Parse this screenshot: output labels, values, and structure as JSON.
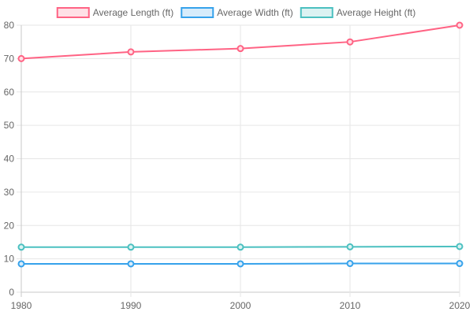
{
  "chart_data": {
    "type": "line",
    "categories": [
      "1980",
      "1990",
      "2000",
      "2010",
      "2020"
    ],
    "series": [
      {
        "name": "Average Length (ft)",
        "values": [
          70,
          72,
          73,
          75,
          80
        ],
        "color": "#ff6384",
        "fill": "#ffe0e6"
      },
      {
        "name": "Average Width (ft)",
        "values": [
          8.5,
          8.5,
          8.5,
          8.6,
          8.6
        ],
        "color": "#36a2eb",
        "fill": "#d7ecfb"
      },
      {
        "name": "Average Height (ft)",
        "values": [
          13.5,
          13.5,
          13.5,
          13.6,
          13.7
        ],
        "color": "#4bc0c0",
        "fill": "#dbf2f2"
      }
    ],
    "yticks": [
      "0",
      "10",
      "20",
      "30",
      "40",
      "50",
      "60",
      "70",
      "80"
    ],
    "ylim": [
      0,
      80
    ],
    "grid": true,
    "legend": "top-center"
  }
}
